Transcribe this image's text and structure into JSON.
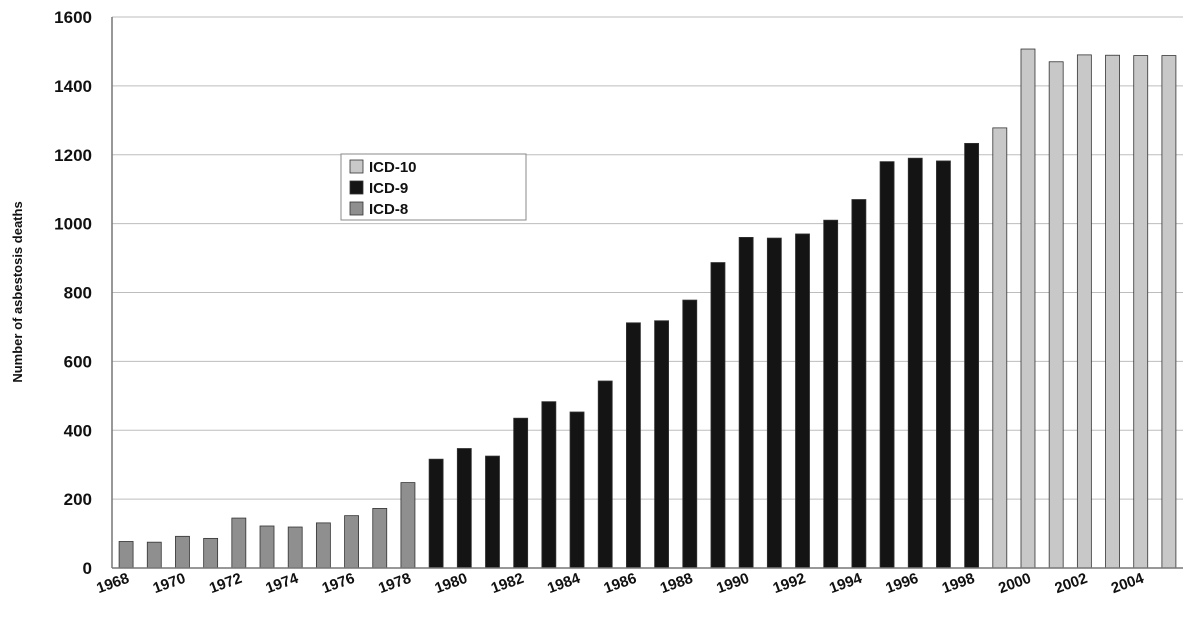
{
  "chart_data": {
    "type": "bar",
    "title": "",
    "xlabel": "",
    "ylabel": "Number of asbestosis deaths",
    "ylim": [
      0,
      1600
    ],
    "yticks": [
      0,
      200,
      400,
      600,
      800,
      1000,
      1200,
      1400,
      1600
    ],
    "grid": true,
    "legend_position": "upper-left",
    "categories": [
      1968,
      1969,
      1970,
      1971,
      1972,
      1973,
      1974,
      1975,
      1976,
      1977,
      1978,
      1979,
      1980,
      1981,
      1982,
      1983,
      1984,
      1985,
      1986,
      1987,
      1988,
      1989,
      1990,
      1991,
      1992,
      1993,
      1994,
      1995,
      1996,
      1997,
      1998,
      1999,
      2000,
      2001,
      2002,
      2003,
      2004,
      2005
    ],
    "x_tick_labels": [
      "1968",
      "1970",
      "1972",
      "1974",
      "1976",
      "1978",
      "1980",
      "1982",
      "1984",
      "1986",
      "1988",
      "1990",
      "1992",
      "1994",
      "1996",
      "1998",
      "2000",
      "2002",
      "2004"
    ],
    "values": [
      77,
      75,
      92,
      86,
      145,
      122,
      119,
      131,
      152,
      173,
      248,
      316,
      347,
      325,
      435,
      483,
      453,
      543,
      712,
      718,
      778,
      887,
      960,
      958,
      970,
      1010,
      1070,
      1180,
      1190,
      1182,
      1233,
      1278,
      1507,
      1470,
      1490,
      1489,
      1488,
      1488
    ],
    "series": [
      {
        "name": "ICD-10",
        "first_year": 1999,
        "last_year": 2005,
        "color": "#c8c8c8"
      },
      {
        "name": "ICD-9",
        "first_year": 1979,
        "last_year": 1998,
        "color": "#141414"
      },
      {
        "name": "ICD-8",
        "first_year": 1968,
        "last_year": 1978,
        "color": "#8f8f8f"
      }
    ]
  }
}
